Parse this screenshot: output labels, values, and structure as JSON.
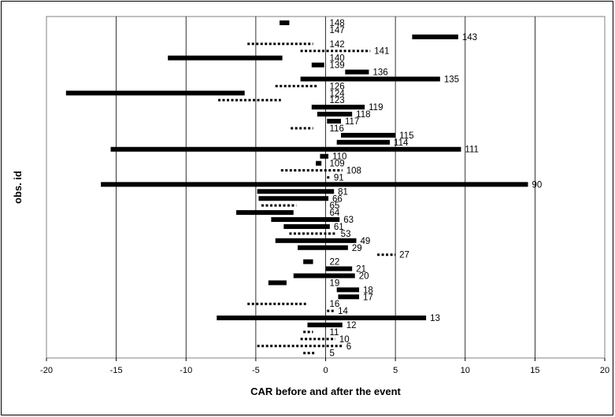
{
  "chart_data": {
    "type": "bar",
    "orientation": "horizontal-range",
    "title": "",
    "xlabel": "CAR before and after the event",
    "ylabel": "obs. id",
    "xlim": [
      -20,
      20
    ],
    "x_ticks": [
      -20,
      -15,
      -10,
      -5,
      0,
      5,
      10,
      15,
      20
    ],
    "grid": "vertical",
    "legend": "none",
    "style_note": "solid bars and dotted bars",
    "series": [
      {
        "id": "148",
        "start": -3.3,
        "end": -2.6,
        "dotted": false
      },
      {
        "id": "147",
        "start": null,
        "end": null,
        "dotted": false
      },
      {
        "id": "143",
        "start": 6.2,
        "end": 9.5,
        "dotted": false
      },
      {
        "id": "142",
        "start": -5.6,
        "end": -0.9,
        "dotted": true
      },
      {
        "id": "141",
        "start": -1.8,
        "end": 3.2,
        "dotted": true
      },
      {
        "id": "140",
        "start": -11.3,
        "end": -3.1,
        "dotted": false
      },
      {
        "id": "139",
        "start": -1.0,
        "end": -0.1,
        "dotted": false
      },
      {
        "id": "136",
        "start": 1.4,
        "end": 3.1,
        "dotted": false
      },
      {
        "id": "135",
        "start": -1.8,
        "end": 8.2,
        "dotted": false
      },
      {
        "id": "126",
        "start": -3.6,
        "end": -0.5,
        "dotted": true
      },
      {
        "id": "124",
        "start": -18.6,
        "end": -5.8,
        "dotted": false
      },
      {
        "id": "123",
        "start": -7.7,
        "end": -3.2,
        "dotted": true
      },
      {
        "id": "119",
        "start": -1.0,
        "end": 2.8,
        "dotted": false
      },
      {
        "id": "118",
        "start": -0.6,
        "end": 1.9,
        "dotted": false
      },
      {
        "id": "117",
        "start": 0.1,
        "end": 1.1,
        "dotted": false
      },
      {
        "id": "116",
        "start": -2.5,
        "end": -0.9,
        "dotted": true
      },
      {
        "id": "115",
        "start": 1.1,
        "end": 5.0,
        "dotted": false
      },
      {
        "id": "114",
        "start": 0.8,
        "end": 4.6,
        "dotted": false
      },
      {
        "id": "111",
        "start": -15.4,
        "end": 9.7,
        "dotted": false
      },
      {
        "id": "110",
        "start": -0.4,
        "end": 0.2,
        "dotted": false
      },
      {
        "id": "109",
        "start": -0.7,
        "end": -0.3,
        "dotted": false
      },
      {
        "id": "108",
        "start": -3.2,
        "end": 1.2,
        "dotted": true
      },
      {
        "id": "91",
        "start": 0.1,
        "end": 0.3,
        "dotted": true
      },
      {
        "id": "90",
        "start": -16.1,
        "end": 14.5,
        "dotted": false
      },
      {
        "id": "81",
        "start": -4.9,
        "end": 0.6,
        "dotted": false
      },
      {
        "id": "66",
        "start": -4.8,
        "end": 0.2,
        "dotted": false
      },
      {
        "id": "65",
        "start": -4.6,
        "end": -2.1,
        "dotted": true
      },
      {
        "id": "64",
        "start": -6.4,
        "end": -2.3,
        "dotted": false
      },
      {
        "id": "63",
        "start": -3.9,
        "end": 1.0,
        "dotted": false
      },
      {
        "id": "61",
        "start": -3.0,
        "end": 0.3,
        "dotted": false
      },
      {
        "id": "53",
        "start": -2.6,
        "end": 0.8,
        "dotted": true
      },
      {
        "id": "49",
        "start": -3.6,
        "end": 2.2,
        "dotted": false
      },
      {
        "id": "29",
        "start": -2.0,
        "end": 1.6,
        "dotted": false
      },
      {
        "id": "27",
        "start": 3.7,
        "end": 5.0,
        "dotted": true
      },
      {
        "id": "22",
        "start": -1.6,
        "end": -0.9,
        "dotted": false
      },
      {
        "id": "21",
        "start": 0.0,
        "end": 1.9,
        "dotted": false
      },
      {
        "id": "20",
        "start": -2.3,
        "end": 2.1,
        "dotted": false
      },
      {
        "id": "19",
        "start": -4.1,
        "end": -2.8,
        "dotted": false
      },
      {
        "id": "18",
        "start": 0.8,
        "end": 2.4,
        "dotted": false
      },
      {
        "id": "17",
        "start": 0.9,
        "end": 2.4,
        "dotted": false
      },
      {
        "id": "16",
        "start": -5.6,
        "end": -1.4,
        "dotted": true
      },
      {
        "id": "14",
        "start": 0.1,
        "end": 0.6,
        "dotted": true
      },
      {
        "id": "13",
        "start": -7.8,
        "end": 7.2,
        "dotted": false
      },
      {
        "id": "12",
        "start": -1.3,
        "end": 1.2,
        "dotted": false
      },
      {
        "id": "11",
        "start": -1.6,
        "end": -0.9,
        "dotted": true
      },
      {
        "id": "10",
        "start": -1.8,
        "end": 0.7,
        "dotted": true
      },
      {
        "id": "6",
        "start": -4.9,
        "end": 1.2,
        "dotted": true
      },
      {
        "id": "5",
        "start": -1.6,
        "end": -0.8,
        "dotted": true
      }
    ]
  }
}
